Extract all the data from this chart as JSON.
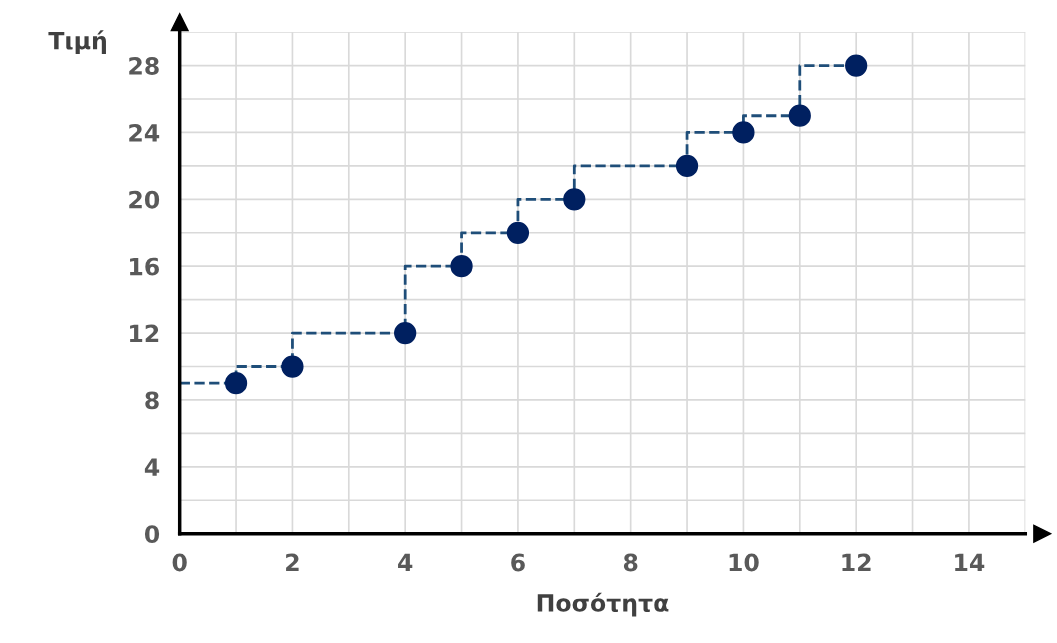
{
  "chart_data": {
    "type": "scatter",
    "xlabel": "Ποσότητα",
    "ylabel": "Τιμή",
    "xlim": [
      0,
      15
    ],
    "ylim": [
      0,
      30
    ],
    "xticks": [
      0,
      {
        "value": 1,
        "label": null
      },
      2,
      {
        "value": 3,
        "label": null
      },
      4,
      {
        "value": 5,
        "label": null
      },
      6,
      {
        "value": 7,
        "label": null
      },
      8,
      {
        "value": 9,
        "label": null
      },
      10,
      {
        "value": 11,
        "label": null
      },
      12,
      {
        "value": 13,
        "label": null
      },
      14,
      {
        "value": 15,
        "label": null
      }
    ],
    "yticks": [
      0,
      {
        "value": 2,
        "label": null
      },
      4,
      {
        "value": 6,
        "label": null
      },
      8,
      {
        "value": 10,
        "label": null
      },
      12,
      {
        "value": 14,
        "label": null
      },
      16,
      {
        "value": 18,
        "label": null
      },
      20,
      {
        "value": 22,
        "label": null
      },
      24,
      {
        "value": 26,
        "label": null
      },
      28,
      {
        "value": 30,
        "label": null
      }
    ],
    "grid": true,
    "series": [
      {
        "type": "step",
        "color": "#1f4e79",
        "line_style": "dashed",
        "marker": "none",
        "x": [
          0,
          1,
          2,
          4,
          5,
          6,
          7,
          9,
          10,
          11,
          12
        ],
        "values": [
          9,
          9,
          10,
          12,
          16,
          18,
          20,
          22,
          24,
          25,
          28
        ]
      },
      {
        "color": "#002060",
        "marker": "circle",
        "x": [
          1,
          2,
          4,
          5,
          6,
          7,
          9,
          10,
          11,
          12
        ],
        "values": [
          9,
          10,
          12,
          16,
          18,
          20,
          22,
          24,
          25,
          28
        ]
      }
    ]
  }
}
